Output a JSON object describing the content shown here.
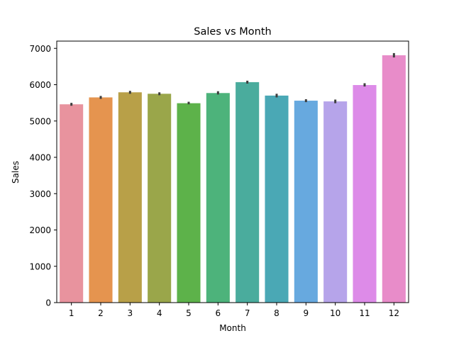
{
  "chart_data": {
    "type": "bar",
    "title": "Sales vs Month",
    "xlabel": "Month",
    "ylabel": "Sales",
    "categories": [
      "1",
      "2",
      "3",
      "4",
      "5",
      "6",
      "7",
      "8",
      "9",
      "10",
      "11",
      "12"
    ],
    "values": [
      5460,
      5650,
      5790,
      5750,
      5490,
      5770,
      6070,
      5700,
      5560,
      5540,
      5990,
      6810
    ],
    "error_low": [
      5420,
      5610,
      5750,
      5710,
      5460,
      5730,
      6030,
      5650,
      5520,
      5490,
      5950,
      6750
    ],
    "error_high": [
      5500,
      5690,
      5830,
      5790,
      5530,
      5820,
      6110,
      5750,
      5600,
      5590,
      6040,
      6870
    ],
    "ylim": [
      0,
      7200
    ],
    "yticks": [
      0,
      1000,
      2000,
      3000,
      4000,
      5000,
      6000,
      7000
    ],
    "grid": false,
    "legend": false,
    "colors": [
      "#e8939e",
      "#e5944f",
      "#b8a048",
      "#9aa64a",
      "#5db24a",
      "#4db37b",
      "#4aac9d",
      "#4aa8b5",
      "#67a9df",
      "#b6a4ea",
      "#dd8be8",
      "#e88cc9"
    ],
    "errorbar_color": "#3f3f3f"
  }
}
